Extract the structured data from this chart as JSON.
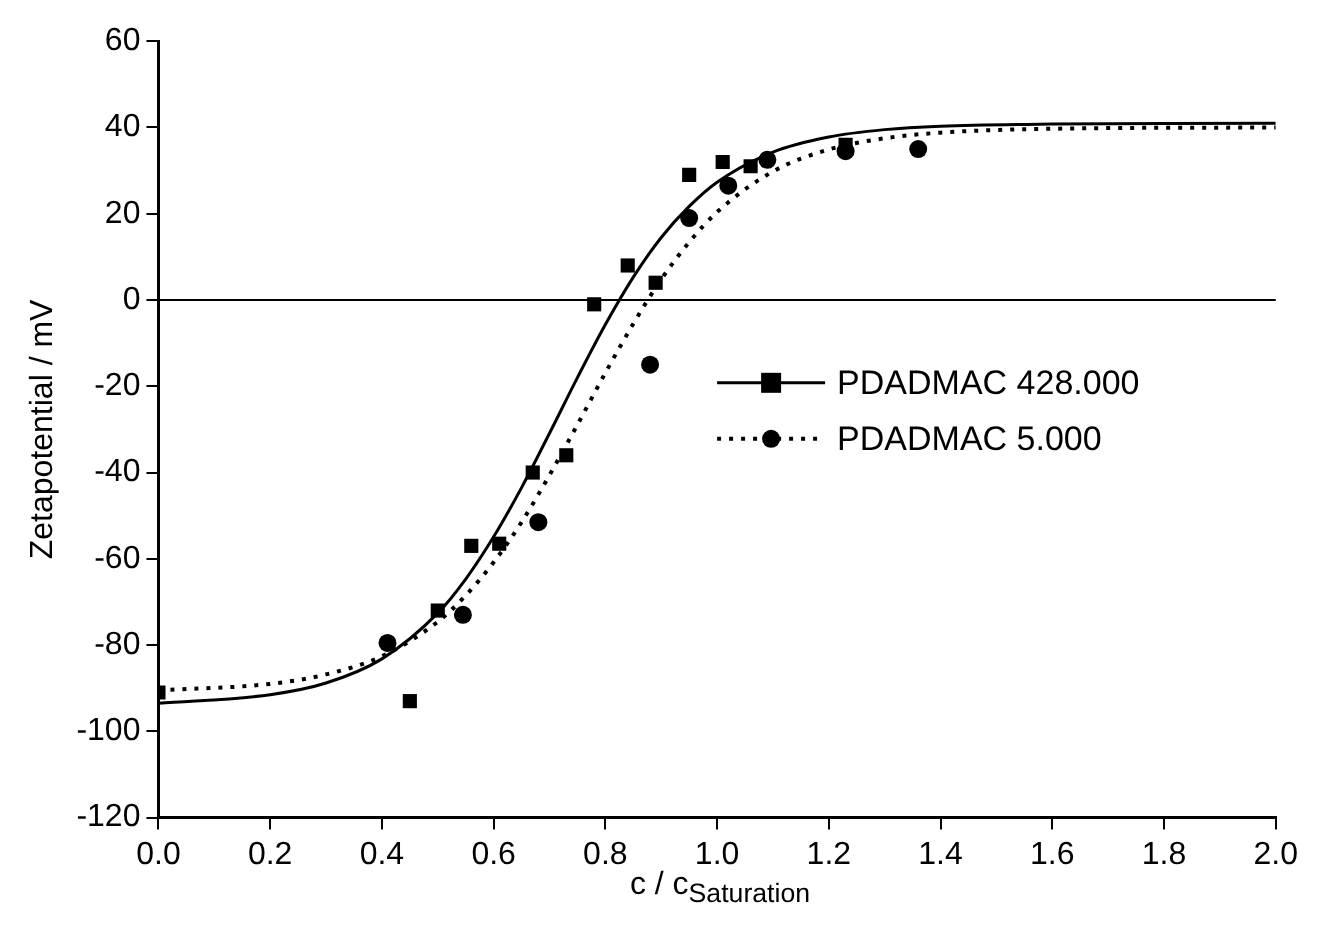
{
  "chart_data": {
    "type": "scatter",
    "xlabel": "c / c$_{Saturation}$",
    "ylabel": "Zetapotential / mV",
    "xlim": [
      0,
      2.0
    ],
    "xticks": [
      {
        "value": 0,
        "label": "0.0"
      },
      0.2,
      0.4,
      0.6,
      0.8,
      {
        "value": 1,
        "label": "1.0"
      },
      1.2,
      1.4,
      1.6,
      1.8,
      {
        "value": 2,
        "label": "2.0"
      }
    ],
    "ylim": [
      -120,
      60
    ],
    "yticks": [
      -120,
      -100,
      -80,
      -60,
      -40,
      -20,
      0,
      20,
      40,
      60
    ],
    "grid": false,
    "legend": "right",
    "ref_lines": [
      {
        "axis": "y",
        "value": 0,
        "color": "#000000",
        "line_style": "solid"
      }
    ],
    "series": [
      {
        "name": "PDADMAC 428.000",
        "marker": "square",
        "line_style": "solid",
        "color": "#000000",
        "x": [
          0,
          0.45,
          0.5,
          0.56,
          0.61,
          0.67,
          0.73,
          0.78,
          0.84,
          0.89,
          0.95,
          1.01,
          1.06,
          1.23
        ],
        "values": [
          -91,
          -93,
          -72,
          -57,
          -56.5,
          -40,
          -36,
          -1,
          8,
          4,
          29,
          32,
          31,
          36
        ]
      },
      {
        "name": "PDADMAC 5.000",
        "marker": "circle",
        "line_style": "dotted",
        "color": "#000000",
        "x": [
          0.41,
          0.545,
          0.68,
          0.88,
          0.95,
          1.02,
          1.09,
          1.23,
          1.36
        ],
        "values": [
          -79.5,
          -73,
          -51.5,
          -15,
          19,
          26.5,
          32.5,
          34.5,
          35
        ]
      },
      {
        "type": "line",
        "marker": "none",
        "line_style": "solid",
        "color": "#000000",
        "x": [
          0,
          0.2,
          0.3,
          0.4,
          0.5,
          0.55,
          0.6,
          0.65,
          0.7,
          0.75,
          0.8,
          0.85,
          0.9,
          0.95,
          1.0,
          1.1,
          1.2,
          1.3,
          1.4,
          1.6,
          2.0
        ],
        "values": [
          -93.5,
          -91.5,
          -88.8,
          -83.2,
          -72.6,
          -64.7,
          -54.9,
          -43.5,
          -30.9,
          -18,
          -5.7,
          5.3,
          14.5,
          21.7,
          27.3,
          34.3,
          37.8,
          39.5,
          40.3,
          40.8,
          41
        ]
      },
      {
        "type": "line",
        "marker": "none",
        "line_style": "dotted",
        "color": "#000000",
        "x": [
          0,
          0.2,
          0.3,
          0.4,
          0.5,
          0.55,
          0.6,
          0.65,
          0.7,
          0.75,
          0.8,
          0.85,
          0.9,
          0.95,
          1.0,
          1.1,
          1.2,
          1.3,
          1.4,
          1.6,
          2.0
        ],
        "values": [
          -90.5,
          -89,
          -86.8,
          -82.6,
          -74.6,
          -68.5,
          -60.8,
          -51.5,
          -40.6,
          -28.9,
          -16.9,
          -5.5,
          4.8,
          13.4,
          20.4,
          29.8,
          34.9,
          37.5,
          38.8,
          39.7,
          40
        ]
      }
    ]
  }
}
